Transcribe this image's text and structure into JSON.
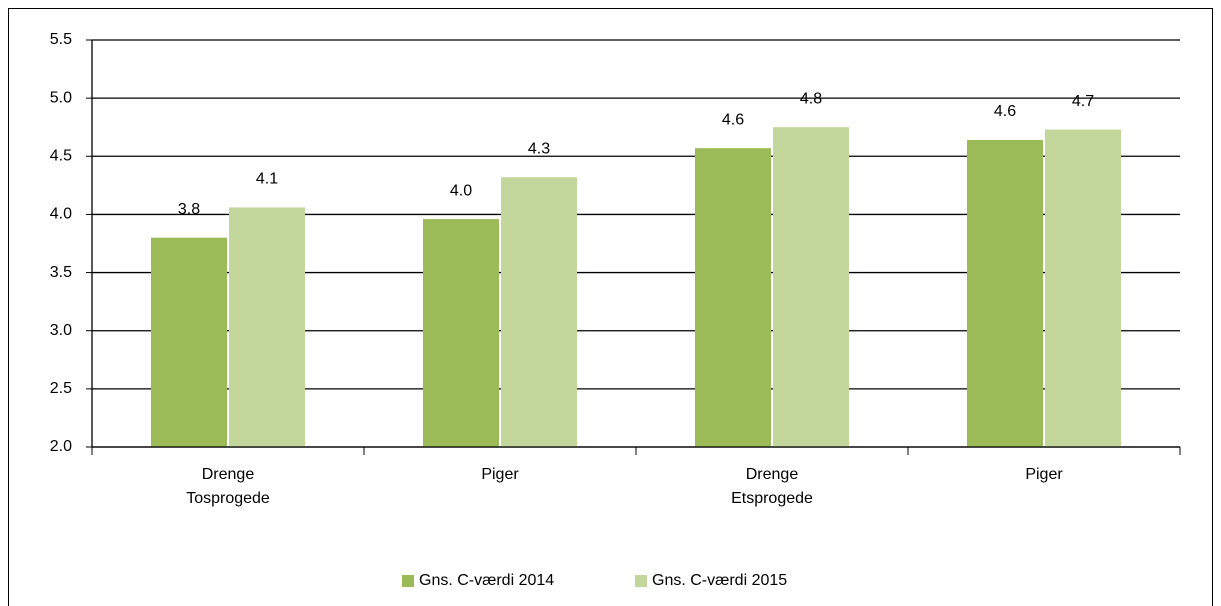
{
  "chart_data": {
    "type": "bar",
    "categories": [
      [
        "Drenge",
        "Tosprogede"
      ],
      [
        "Piger"
      ],
      [
        "Drenge",
        "Etsprogede"
      ],
      [
        "Piger"
      ]
    ],
    "series": [
      {
        "name": "Gns. C-værdi 2014",
        "color": "#9bbb59",
        "values": [
          3.8,
          3.96,
          4.57,
          4.64
        ],
        "value_labels": [
          "3.8",
          "4.0",
          "4.6",
          "4.6"
        ]
      },
      {
        "name": "Gns. C-værdi 2015",
        "color": "#c3d69b",
        "values": [
          4.06,
          4.32,
          4.75,
          4.73
        ],
        "value_labels": [
          "4.1",
          "4.3",
          "4.8",
          "4.7"
        ]
      }
    ],
    "ylim": [
      2,
      5.5
    ],
    "yticks": [
      {
        "value": 2,
        "label": "2.0"
      },
      2.5,
      {
        "value": 3,
        "label": "3.0"
      },
      3.5,
      {
        "value": 4,
        "label": "4.0"
      },
      4.5,
      {
        "value": 5,
        "label": "5.0"
      },
      5.5
    ],
    "grid": true,
    "legend": "bottom"
  }
}
